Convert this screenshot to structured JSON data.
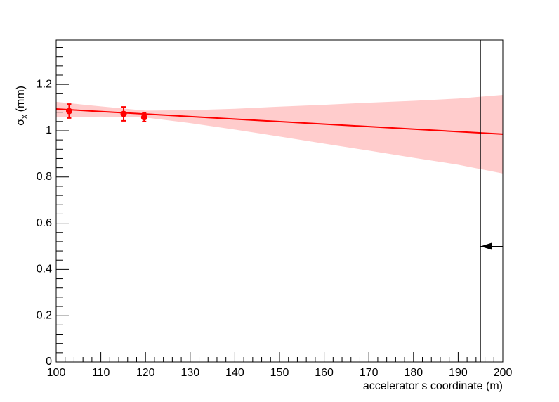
{
  "chart_data": {
    "type": "scatter",
    "x_label": "accelerator s coordinate (m)",
    "y_label": "σ",
    "y_label_sub": "x",
    "y_label_unit": "(mm)",
    "xlim": [
      100,
      200
    ],
    "xticks": [
      100,
      110,
      120,
      130,
      140,
      150,
      160,
      170,
      180,
      190,
      200
    ],
    "ylim": [
      0,
      1.392
    ],
    "yticks": [
      0,
      0.2,
      0.4,
      0.6,
      0.8,
      1,
      1.2
    ],
    "points": {
      "color": "#ff0000",
      "x": [
        102.9,
        115.1,
        119.7
      ],
      "values": [
        1.085,
        1.073,
        1.058
      ],
      "errors": [
        0.03,
        0.03,
        0.018
      ]
    },
    "fit": {
      "color": "#ff0000",
      "x": [
        100,
        200
      ],
      "values": [
        1.094,
        0.985
      ]
    },
    "band": {
      "color": "#ffcccc",
      "x": [
        100,
        110,
        120,
        130,
        140,
        150,
        160,
        170,
        180,
        190,
        200
      ],
      "upper": [
        1.125,
        1.105,
        1.087,
        1.089,
        1.095,
        1.104,
        1.112,
        1.121,
        1.129,
        1.139,
        1.155
      ],
      "lower": [
        1.058,
        1.061,
        1.057,
        1.033,
        1.005,
        0.975,
        0.944,
        0.914,
        0.883,
        0.853,
        0.815
      ]
    },
    "vline": {
      "x": 195,
      "color": "#000000"
    },
    "arrow": {
      "x_from": 200,
      "x_to": 195,
      "y": 0.5,
      "color": "#000000"
    }
  }
}
